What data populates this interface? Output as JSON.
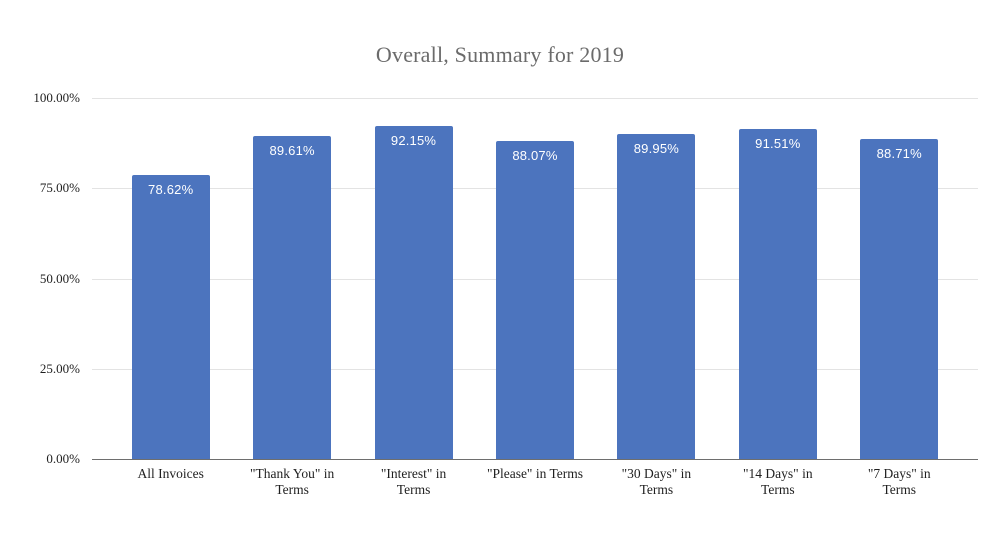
{
  "chart_data": {
    "type": "bar",
    "title": "Overall, Summary for 2019",
    "categories": [
      "All Invoices",
      "\"Thank You\" in\nTerms",
      "\"Interest\" in\nTerms",
      "\"Please\" in Terms",
      "\"30 Days\" in\nTerms",
      "\"14 Days\" in\nTerms",
      "\"7 Days\" in\nTerms"
    ],
    "values": [
      78.62,
      89.61,
      92.15,
      88.07,
      89.95,
      91.51,
      88.71
    ],
    "value_labels": [
      "78.62%",
      "89.61%",
      "92.15%",
      "88.07%",
      "89.95%",
      "91.51%",
      "88.71%"
    ],
    "y_ticks": [
      "100.00%",
      "75.00%",
      "50.00%",
      "25.00%",
      "0.00%"
    ],
    "ylim": [
      0,
      100
    ],
    "grid": true,
    "legend": "none",
    "xlabel": "",
    "ylabel": ""
  },
  "colors": {
    "background": "#ffffff",
    "bar": "#4c74be",
    "gridline": "#e3e3e3",
    "axis_line": "#6e6e6e",
    "title_text": "#6b6b6b",
    "axis_text": "#1f1f1f",
    "bar_label_text": "#ffffff"
  }
}
